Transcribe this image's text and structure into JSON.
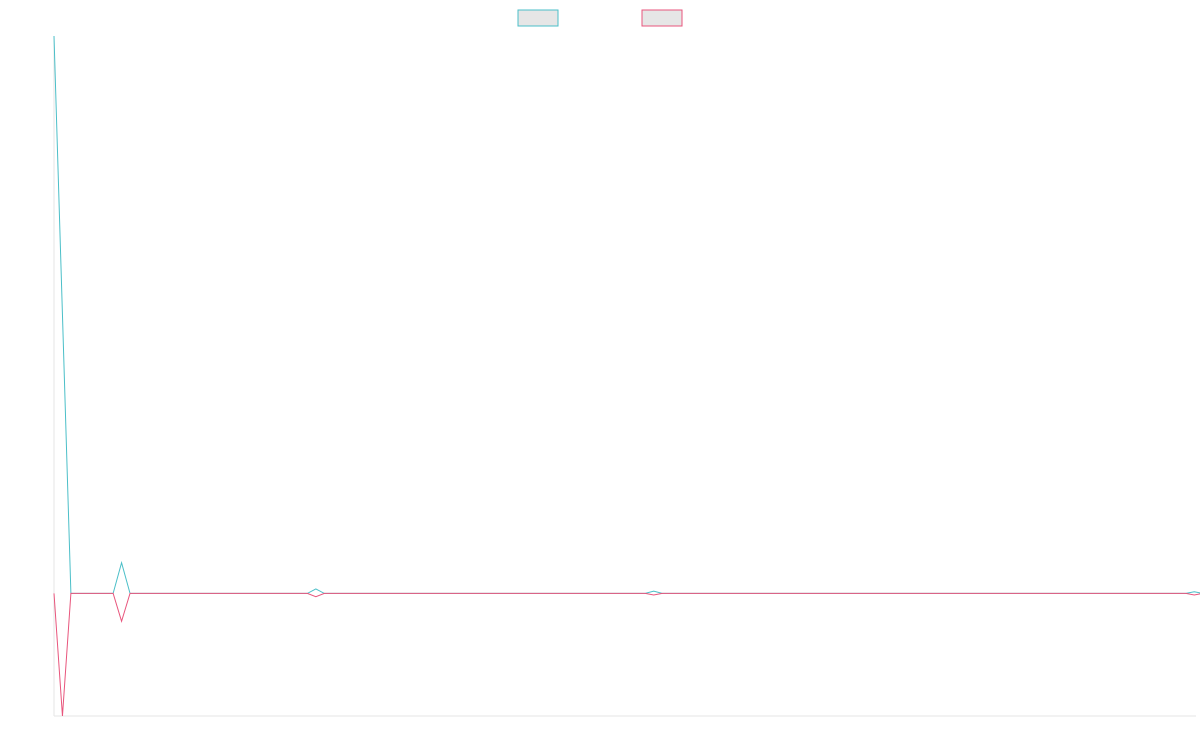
{
  "chart_data": {
    "type": "line",
    "title": "",
    "xlabel": "",
    "ylabel": "",
    "grid": false,
    "legend": "top-center",
    "x": [
      0.0,
      0.5,
      1.0,
      1.5,
      2.5,
      3.5,
      4.0,
      4.5,
      5.0,
      5.5,
      15.0,
      15.5,
      16.0,
      35.0,
      35.5,
      36.0,
      67.0,
      67.5,
      68.0
    ],
    "xlim": [
      0,
      67.6
    ],
    "ylim": [
      -0.22,
      1.0
    ],
    "series": [
      {
        "name": "",
        "color": "#4bbfc8",
        "fill": "#e6e6e6",
        "values": [
          1.0,
          0.5,
          0.0,
          0.0,
          0.0,
          0.0,
          0.055,
          0.0,
          0.0,
          0.0,
          0.0,
          0.008,
          0.0,
          0.0,
          0.004,
          0.0,
          0.0,
          0.003,
          0.0
        ]
      },
      {
        "name": "",
        "color": "#e8557c",
        "fill": "#e6e6e6",
        "values": [
          0.0,
          -0.22,
          0.0,
          0.0,
          0.0,
          0.0,
          -0.05,
          0.0,
          0.0,
          0.0,
          0.0,
          -0.006,
          0.0,
          0.0,
          -0.003,
          0.0,
          0.0,
          -0.003,
          0.0
        ]
      }
    ]
  }
}
